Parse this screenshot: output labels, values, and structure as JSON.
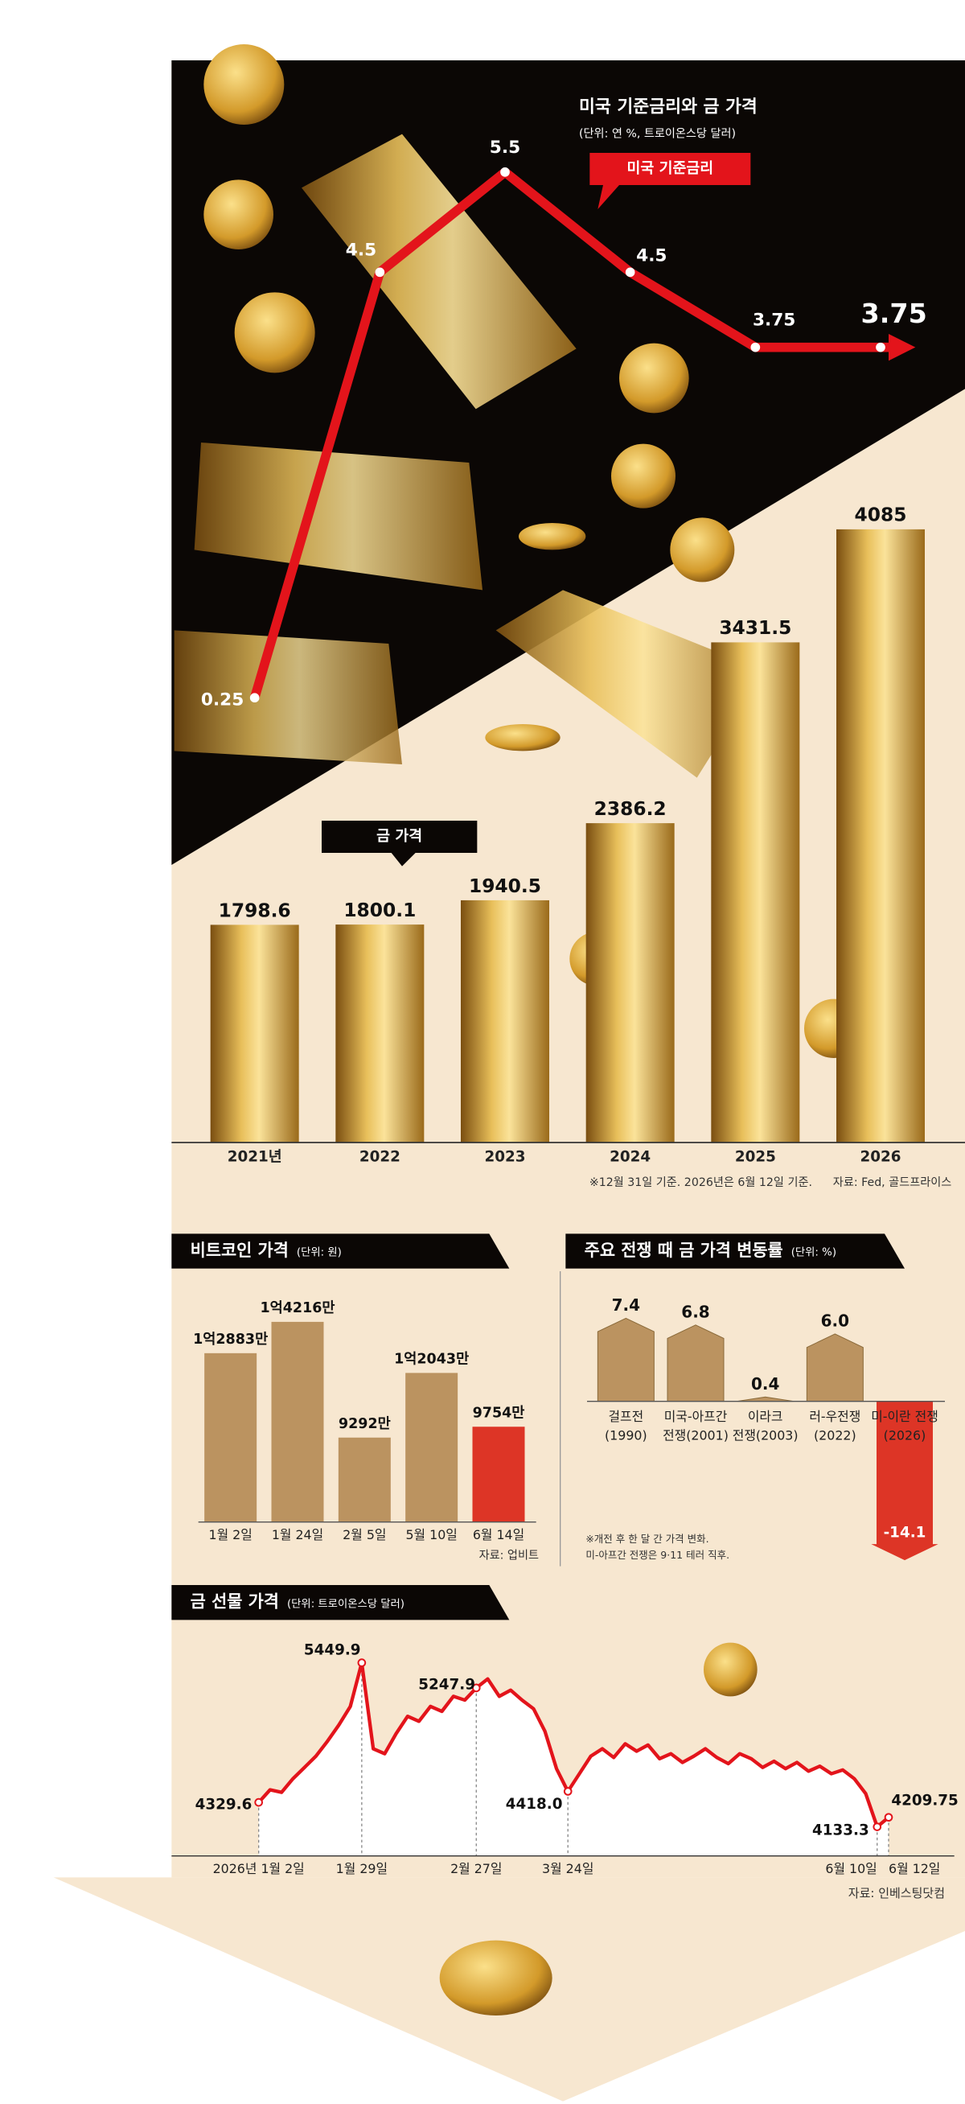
{
  "chart_data": [
    {
      "type": "combo",
      "title": "미국 기준금리와 금 가격",
      "subtitle": "(단위: 연 %, 트로이온스당 달러)",
      "categories": [
        "2021년",
        "2022",
        "2023",
        "2024",
        "2025",
        "2026"
      ],
      "series": [
        {
          "name": "금 가격",
          "type": "bar",
          "color": "#d4a437",
          "values": [
            1798.6,
            1800.1,
            1940.5,
            2386.2,
            3431.5,
            4085
          ]
        },
        {
          "name": "미국 기준금리",
          "type": "line",
          "axis": "y2",
          "color": "#e3141b",
          "values": [
            0.25,
            4.5,
            5.5,
            4.5,
            3.75,
            3.75
          ]
        }
      ],
      "ylim": [
        540,
        4300
      ],
      "y2lim": [
        0,
        6
      ],
      "note": "※12월 31일 기준. 2026년은 6월 12일 기준.",
      "source": "자료: Fed, 골드프라이스"
    },
    {
      "type": "bar",
      "title": "비트코인 가격",
      "unit": "(단위: 원)",
      "categories": [
        "1월 2일",
        "1월 24일",
        "2월 5일",
        "5월 10일",
        "6월 14일"
      ],
      "values": [
        128830000,
        142160000,
        92920000,
        120430000,
        97540000
      ],
      "value_labels": [
        "1억2883만",
        "1억4216만",
        "9292만",
        "1억2043만",
        "9754만"
      ],
      "colors": [
        "#bb9360",
        "#bb9360",
        "#bb9360",
        "#bb9360",
        "#dd3526"
      ],
      "ylim": [
        57000000,
        150000000
      ],
      "source": "자료: 업비트"
    },
    {
      "type": "bar",
      "title": "주요 전쟁 때 금 가격 변동률",
      "unit": "(단위: %)",
      "categories": [
        [
          "걸프전",
          "(1990)"
        ],
        [
          "미국-아프간",
          "전쟁(2001)"
        ],
        [
          "이라크",
          "전쟁(2003)"
        ],
        [
          "러-우전쟁",
          "(2022)"
        ],
        [
          "미-이란 전쟁",
          "(2026)"
        ]
      ],
      "values": [
        7.4,
        6.8,
        0.4,
        6.0,
        -14.1
      ],
      "value_labels": [
        "7.4",
        "6.8",
        "0.4",
        "6.0",
        "-14.1"
      ],
      "colors": [
        "#bb9360",
        "#bb9360",
        "#bb9360",
        "#bb9360",
        "#dd3526"
      ],
      "ylim": [
        -15,
        8
      ],
      "note": [
        "※개전 후 한 달 간 가격 변화.",
        "미-아프간 전쟁은 9·11 테러 직후."
      ]
    },
    {
      "type": "line",
      "title": "금 선물 가격",
      "unit": "(단위: 트로이온스당 달러)",
      "categories": [
        "2026년 1월 2일",
        null,
        null,
        null,
        null,
        null,
        null,
        null,
        null,
        "1월 29일",
        null,
        null,
        null,
        null,
        null,
        null,
        null,
        null,
        null,
        "2월 27일",
        null,
        null,
        null,
        null,
        null,
        null,
        null,
        "3월 24일",
        null,
        null,
        null,
        null,
        null,
        null,
        null,
        null,
        null,
        null,
        null,
        null,
        null,
        null,
        null,
        null,
        null,
        null,
        null,
        null,
        null,
        null,
        null,
        null,
        null,
        null,
        "6월 10일",
        "6월 12일"
      ],
      "values": [
        4329.6,
        4430,
        4410,
        4520,
        4610,
        4700,
        4820,
        4950,
        5100,
        5449.9,
        4760,
        4720,
        4880,
        5020,
        4980,
        5100,
        5060,
        5180,
        5150,
        5247.9,
        5320,
        5180,
        5230,
        5150,
        5080,
        4900,
        4600,
        4418.0,
        4560,
        4700,
        4760,
        4690,
        4800,
        4740,
        4790,
        4680,
        4720,
        4650,
        4700,
        4760,
        4690,
        4640,
        4720,
        4680,
        4610,
        4660,
        4600,
        4650,
        4580,
        4620,
        4560,
        4590,
        4520,
        4400,
        4133.3,
        4209.75
      ],
      "value_labels": [
        "4329.6",
        null,
        null,
        null,
        null,
        null,
        null,
        null,
        null,
        "5449.9",
        null,
        null,
        null,
        null,
        null,
        null,
        null,
        null,
        null,
        "5247.9",
        null,
        null,
        null,
        null,
        null,
        null,
        null,
        "4418.0",
        null,
        null,
        null,
        null,
        null,
        null,
        null,
        null,
        null,
        null,
        null,
        null,
        null,
        null,
        null,
        null,
        null,
        null,
        null,
        null,
        null,
        null,
        null,
        null,
        null,
        null,
        "4133.3",
        "4209.75"
      ],
      "color": "#e3141b",
      "ylim": [
        3900,
        5600
      ],
      "source": "자료: 인베스팅닷컴"
    }
  ]
}
